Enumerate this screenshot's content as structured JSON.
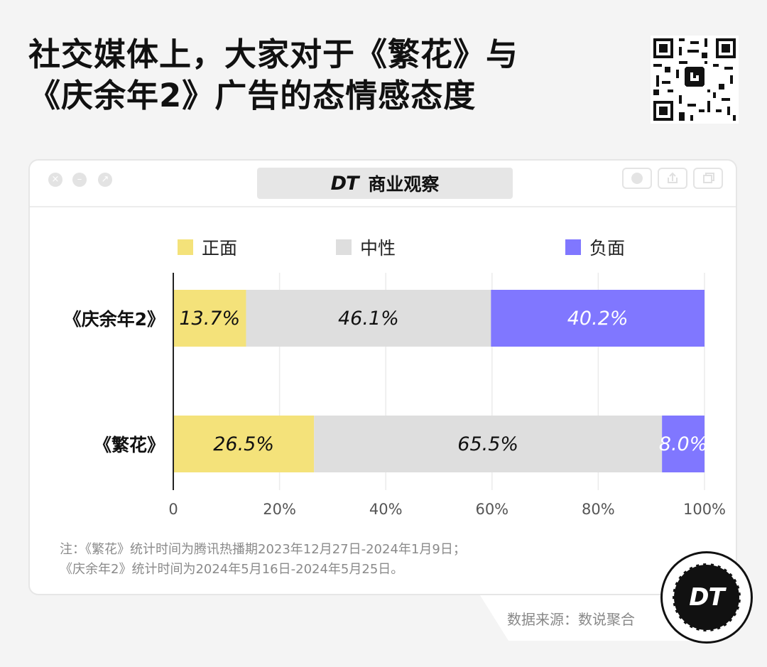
{
  "title": {
    "line1": "社交媒体上，大家对于《繁花》与",
    "line2": "《庆余年2》广告的态情感态度"
  },
  "window": {
    "brand_logo": "DT",
    "brand_name": "商业观察"
  },
  "legend": [
    {
      "label": "正面",
      "color": "#f4e27a"
    },
    {
      "label": "中性",
      "color": "#dedede"
    },
    {
      "label": "负面",
      "color": "#8077ff"
    }
  ],
  "chart_data": {
    "type": "bar",
    "orientation": "horizontal",
    "stacked": true,
    "categories": [
      "《庆余年2》",
      "《繁花》"
    ],
    "series": [
      {
        "name": "正面",
        "values": [
          13.7,
          26.5
        ],
        "color": "#f4e27a"
      },
      {
        "name": "中性",
        "values": [
          46.1,
          65.5
        ],
        "color": "#dedede"
      },
      {
        "name": "负面",
        "values": [
          40.2,
          8.0
        ],
        "color": "#8077ff"
      }
    ],
    "value_labels": [
      [
        "13.7%",
        "46.1%",
        "40.2%"
      ],
      [
        "26.5%",
        "65.5%",
        "8.0%"
      ]
    ],
    "xlim": [
      0,
      100
    ],
    "xticks": [
      "0",
      "20%",
      "40%",
      "60%",
      "80%",
      "100%"
    ],
    "grid": true,
    "legend_position": "top"
  },
  "footnote": {
    "line1": "注：《繁花》统计时间为腾讯热播期2023年12月27日-2024年1月9日；",
    "line2": "《庆余年2》统计时间为2024年5月16日-2024年5月25日。"
  },
  "source": "数据来源：数说聚合",
  "badge": "DT",
  "icons": [
    "qr-code-icon",
    "close-icon",
    "minimize-icon",
    "maximize-icon",
    "record-icon",
    "share-icon",
    "copy-icon"
  ]
}
